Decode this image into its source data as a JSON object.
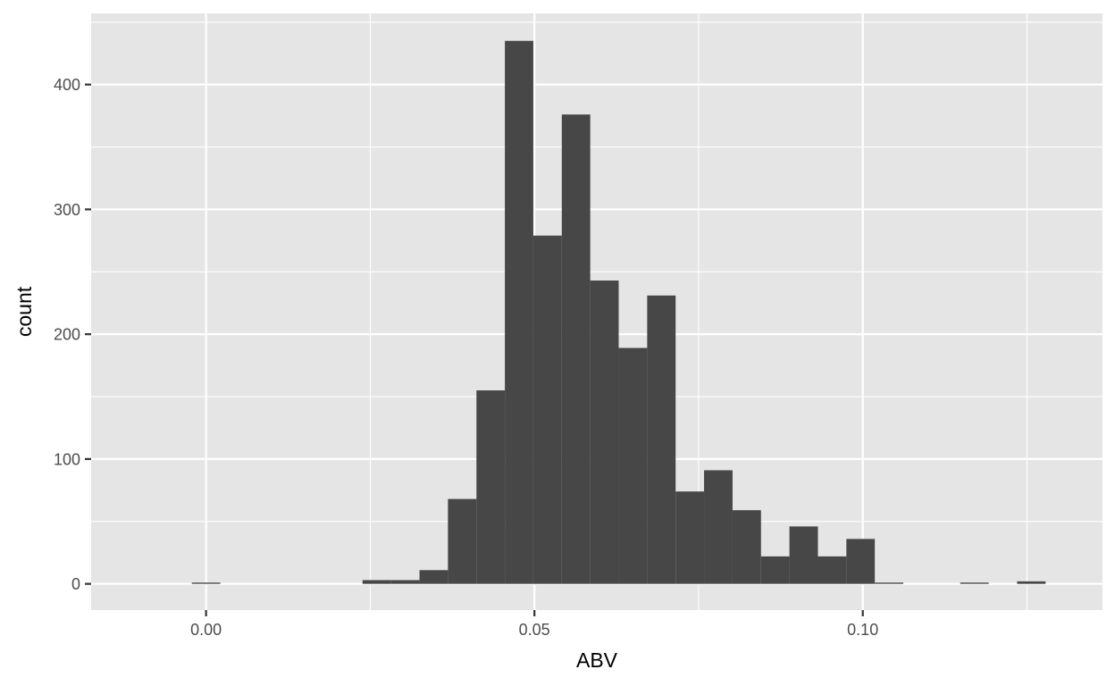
{
  "colors": {
    "panel_background": "#e5e5e5",
    "grid_major": "#ffffff",
    "bar_fill": "#474747",
    "tick_text": "#4d4d4d",
    "title_text": "#000000"
  },
  "chart_data": {
    "type": "bar",
    "subtype": "histogram",
    "xlabel": "ABV",
    "ylabel": "count",
    "xlim": [
      -0.0175,
      0.1365
    ],
    "ylim": [
      -21,
      457
    ],
    "xticks": [
      0.0,
      0.05,
      0.1
    ],
    "xtick_labels": [
      "0.00",
      "0.05",
      "0.10"
    ],
    "yticks": [
      0,
      100,
      200,
      300,
      400
    ],
    "ytick_labels": [
      "0",
      "100",
      "200",
      "300",
      "400"
    ],
    "grid": true,
    "legend": "none",
    "bin_width": 0.00433,
    "bins": [
      {
        "x0": -0.00217,
        "x1": 0.00217,
        "count": 1
      },
      {
        "x0": 0.00217,
        "x1": 0.0065,
        "count": 0
      },
      {
        "x0": 0.0065,
        "x1": 0.01083,
        "count": 0
      },
      {
        "x0": 0.01083,
        "x1": 0.01517,
        "count": 0
      },
      {
        "x0": 0.01517,
        "x1": 0.0195,
        "count": 0
      },
      {
        "x0": 0.0195,
        "x1": 0.02383,
        "count": 0
      },
      {
        "x0": 0.02383,
        "x1": 0.02817,
        "count": 3
      },
      {
        "x0": 0.02817,
        "x1": 0.0325,
        "count": 3
      },
      {
        "x0": 0.0325,
        "x1": 0.03683,
        "count": 11
      },
      {
        "x0": 0.03683,
        "x1": 0.04117,
        "count": 68
      },
      {
        "x0": 0.04117,
        "x1": 0.0455,
        "count": 155
      },
      {
        "x0": 0.0455,
        "x1": 0.04983,
        "count": 435
      },
      {
        "x0": 0.04983,
        "x1": 0.05417,
        "count": 279
      },
      {
        "x0": 0.05417,
        "x1": 0.0585,
        "count": 376
      },
      {
        "x0": 0.0585,
        "x1": 0.06283,
        "count": 243
      },
      {
        "x0": 0.06283,
        "x1": 0.06717,
        "count": 189
      },
      {
        "x0": 0.06717,
        "x1": 0.0715,
        "count": 231
      },
      {
        "x0": 0.0715,
        "x1": 0.07583,
        "count": 74
      },
      {
        "x0": 0.07583,
        "x1": 0.08017,
        "count": 91
      },
      {
        "x0": 0.08017,
        "x1": 0.0845,
        "count": 59
      },
      {
        "x0": 0.0845,
        "x1": 0.08883,
        "count": 22
      },
      {
        "x0": 0.08883,
        "x1": 0.09317,
        "count": 46
      },
      {
        "x0": 0.09317,
        "x1": 0.0975,
        "count": 22
      },
      {
        "x0": 0.0975,
        "x1": 0.10183,
        "count": 36
      },
      {
        "x0": 0.10183,
        "x1": 0.10617,
        "count": 1
      },
      {
        "x0": 0.10617,
        "x1": 0.1105,
        "count": 0
      },
      {
        "x0": 0.1105,
        "x1": 0.11483,
        "count": 0
      },
      {
        "x0": 0.11483,
        "x1": 0.11917,
        "count": 1
      },
      {
        "x0": 0.11917,
        "x1": 0.1235,
        "count": 0
      },
      {
        "x0": 0.1235,
        "x1": 0.12783,
        "count": 2
      }
    ]
  }
}
